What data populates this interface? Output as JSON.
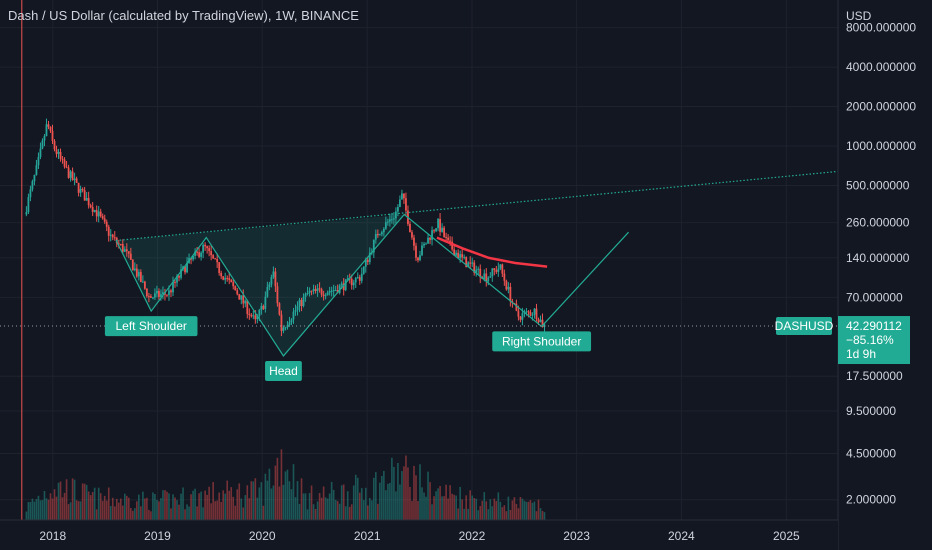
{
  "header": {
    "title": "Dash / US Dollar (calculated by TradingView), 1W, BINANCE"
  },
  "price_axis": {
    "currency": "USD"
  },
  "symbol_tag": "DASHUSD",
  "price_box": {
    "price": "42.290112",
    "change": "−85.16%",
    "countdown": "1d 9h"
  },
  "colors": {
    "background": "#131722",
    "grid": "#1e222d",
    "up": "#26a69a",
    "down": "#ef5350",
    "pattern": "#22ab94",
    "moving_average": "#f23645",
    "label_bg": "#22ab94"
  },
  "chart_data": {
    "type": "candlestick",
    "title": "Dash / US Dollar (calculated by TradingView), 1W, BINANCE",
    "y_scale": "log",
    "ylim": [
      1.4,
      13000
    ],
    "xlim": [
      "2017-07-01",
      "2025-06-30"
    ],
    "grid": true,
    "y_ticks": [
      "8000.000000",
      "4000.000000",
      "2000.000000",
      "1000.000000",
      "500.000000",
      "260.000000",
      "140.000000",
      "70.000000",
      "17.500000",
      "9.500000",
      "4.500000",
      "2.000000"
    ],
    "y_tick_values": [
      8000,
      4000,
      2000,
      1000,
      500,
      260,
      140,
      70,
      17.5,
      9.5,
      4.5,
      2
    ],
    "x_ticks": [
      "2018",
      "2019",
      "2020",
      "2021",
      "2022",
      "2023",
      "2024",
      "2025"
    ],
    "price_path": [
      [
        "2017-10-01",
        300
      ],
      [
        "2017-11-15",
        700
      ],
      [
        "2017-12-20",
        1500
      ],
      [
        "2018-01-10",
        1000
      ],
      [
        "2018-02-15",
        700
      ],
      [
        "2018-04-15",
        450
      ],
      [
        "2018-06-15",
        300
      ],
      [
        "2018-08-01",
        200
      ],
      [
        "2018-09-15",
        160
      ],
      [
        "2018-11-15",
        90
      ],
      [
        "2018-12-10",
        70
      ],
      [
        "2019-02-15",
        75
      ],
      [
        "2019-04-15",
        120
      ],
      [
        "2019-06-20",
        170
      ],
      [
        "2019-08-15",
        110
      ],
      [
        "2019-10-15",
        75
      ],
      [
        "2019-12-15",
        45
      ],
      [
        "2020-01-10",
        60
      ],
      [
        "2020-02-15",
        110
      ],
      [
        "2020-03-15",
        40
      ],
      [
        "2020-06-15",
        75
      ],
      [
        "2020-09-15",
        80
      ],
      [
        "2020-12-15",
        100
      ],
      [
        "2021-02-15",
        220
      ],
      [
        "2021-04-15",
        300
      ],
      [
        "2021-05-10",
        420
      ],
      [
        "2021-07-01",
        140
      ],
      [
        "2021-09-10",
        260
      ],
      [
        "2021-10-15",
        180
      ],
      [
        "2021-12-15",
        130
      ],
      [
        "2022-03-01",
        100
      ],
      [
        "2022-04-15",
        120
      ],
      [
        "2022-06-15",
        50
      ],
      [
        "2022-08-15",
        55
      ],
      [
        "2022-09-15",
        42.29
      ]
    ],
    "volume_path": [
      [
        "2017-10-01",
        0.2
      ],
      [
        "2018-01-01",
        0.55
      ],
      [
        "2018-06-01",
        0.35
      ],
      [
        "2019-01-01",
        0.3
      ],
      [
        "2019-06-01",
        0.4
      ],
      [
        "2020-01-01",
        0.45
      ],
      [
        "2020-03-10",
        1.0
      ],
      [
        "2020-06-01",
        0.35
      ],
      [
        "2021-01-01",
        0.5
      ],
      [
        "2021-05-01",
        0.75
      ],
      [
        "2021-09-01",
        0.45
      ],
      [
        "2022-01-01",
        0.35
      ],
      [
        "2022-09-15",
        0.2
      ]
    ],
    "pattern": {
      "name": "Inverse Head and Shoulders",
      "points": [
        [
          "2018-08-10",
          190
        ],
        [
          "2018-12-10",
          55
        ],
        [
          "2019-06-20",
          200
        ],
        [
          "2020-03-15",
          25
        ],
        [
          "2021-05-10",
          300
        ],
        [
          "2022-09-01",
          42
        ],
        [
          "2023-07-01",
          220
        ]
      ],
      "neckline": [
        [
          "2018-08-10",
          190
        ],
        [
          "2025-06-30",
          640
        ]
      ],
      "labels": [
        {
          "text": "Left Shoulder",
          "date": "2018-12-10",
          "price": 55
        },
        {
          "text": "Head",
          "date": "2020-03-15",
          "price": 25
        },
        {
          "text": "Right Shoulder",
          "date": "2022-09-01",
          "price": 42
        }
      ]
    },
    "moving_average": [
      [
        "2021-09-01",
        200
      ],
      [
        "2021-12-01",
        165
      ],
      [
        "2022-03-01",
        140
      ],
      [
        "2022-06-01",
        128
      ],
      [
        "2022-09-20",
        120
      ]
    ],
    "current_price": 42.290112,
    "vertical_marker": "2017-09-15"
  }
}
